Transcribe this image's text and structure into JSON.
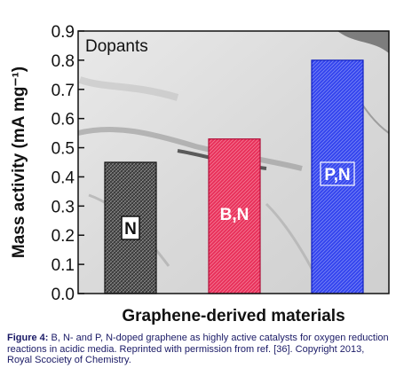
{
  "chart_data": {
    "type": "bar",
    "title": "Dopants",
    "xlabel": "Graphene-derived materials",
    "ylabel": "Mass activity (mA mg⁻¹)",
    "ylim": [
      0.0,
      0.9
    ],
    "yticks": [
      "0.0",
      "0.1",
      "0.2",
      "0.3",
      "0.4",
      "0.5",
      "0.6",
      "0.7",
      "0.8",
      "0.9"
    ],
    "categories": [
      "N",
      "B,N",
      "P,N"
    ],
    "values": [
      0.45,
      0.53,
      0.8
    ],
    "colors": [
      "#3a3a3a",
      "#e8305a",
      "#2f3de8"
    ],
    "grid": false,
    "background": "graphene TEM image"
  },
  "caption": {
    "label": "Figure 4:",
    "text": "B, N- and P, N-doped graphene as highly active catalysts for oxygen reduction reactions in acidic media. Reprinted with permission from ref. [36]. Copyright 2013, Royal Scociety of Chemistry."
  }
}
